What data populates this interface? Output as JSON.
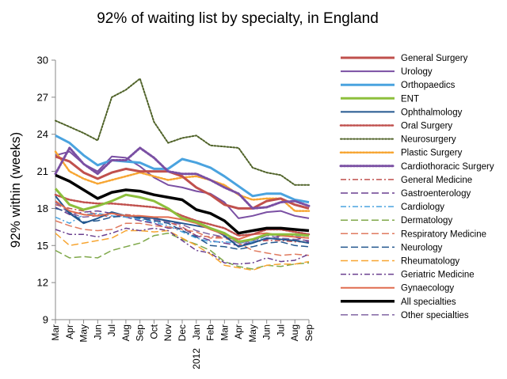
{
  "chart_data": {
    "type": "line",
    "title": "92% of waiting list by specialty, in England",
    "xlabel": "",
    "ylabel": "92% within (weeks)",
    "ylim": [
      9,
      30
    ],
    "yticks": [
      9,
      12,
      15,
      18,
      21,
      24,
      27,
      30
    ],
    "grid": false,
    "legend_position": "right",
    "x": [
      "Mar",
      "Apr",
      "May",
      "Jun",
      "Jul",
      "Aug",
      "Sep",
      "Oct",
      "Nov",
      "Dec",
      "Jan",
      "Feb",
      "Mar",
      "Apr",
      "May",
      "Jun",
      "Jul",
      "Aug",
      "Sep"
    ],
    "year_label": {
      "text": "2012",
      "index": 10
    },
    "series": [
      {
        "name": "General Surgery",
        "color": "#c0504d",
        "dash": "solid",
        "width": 3,
        "values": [
          22.2,
          21.8,
          20.9,
          20.4,
          20.9,
          21.2,
          21.0,
          21.0,
          21.0,
          20.6,
          19.7,
          19.1,
          18.3,
          18.0,
          18.0,
          18.6,
          18.8,
          18.3,
          18.0
        ]
      },
      {
        "name": "Urology",
        "color": "#7a4fa3",
        "dash": "solid",
        "width": 2,
        "values": [
          22.3,
          22.6,
          21.6,
          21.0,
          22.2,
          22.1,
          21.4,
          20.5,
          19.9,
          19.7,
          19.4,
          19.2,
          18.5,
          17.2,
          17.4,
          17.7,
          17.8,
          17.4,
          17.2
        ]
      },
      {
        "name": "Orthopaedics",
        "color": "#4aa3df",
        "dash": "solid",
        "width": 3,
        "values": [
          23.9,
          23.3,
          22.3,
          21.5,
          21.9,
          21.8,
          21.7,
          21.2,
          21.2,
          22.0,
          21.7,
          21.3,
          20.6,
          19.8,
          19.0,
          19.2,
          19.2,
          18.7,
          18.5
        ]
      },
      {
        "name": "ENT",
        "color": "#8dbf3c",
        "dash": "solid",
        "width": 3,
        "values": [
          19.6,
          18.3,
          17.9,
          18.2,
          18.6,
          19.1,
          18.9,
          18.6,
          18.0,
          17.2,
          16.9,
          16.4,
          16.0,
          15.3,
          15.5,
          15.9,
          15.9,
          15.9,
          15.8
        ]
      },
      {
        "name": "Ophthalmology",
        "color": "#23578f",
        "dash": "solid",
        "width": 2,
        "values": [
          19.0,
          17.6,
          16.8,
          17.2,
          17.7,
          17.4,
          17.3,
          17.2,
          17.0,
          16.8,
          16.6,
          16.4,
          15.8,
          14.9,
          15.2,
          15.6,
          15.5,
          15.4,
          15.2
        ]
      },
      {
        "name": "Oral Surgery",
        "color": "#c0504d",
        "dash": "dot",
        "width": 2.5,
        "values": [
          19.1,
          18.7,
          18.5,
          18.4,
          18.4,
          18.3,
          18.2,
          18.1,
          17.9,
          17.4,
          17.0,
          16.7,
          16.4,
          15.8,
          15.9,
          16.3,
          16.3,
          16.1,
          15.9
        ]
      },
      {
        "name": "Neurosurgery",
        "color": "#4f6228",
        "dash": "dot",
        "width": 2,
        "values": [
          25.1,
          24.6,
          24.1,
          23.5,
          27.0,
          27.6,
          28.5,
          25.0,
          23.3,
          23.7,
          23.9,
          23.1,
          23.0,
          22.9,
          21.3,
          20.9,
          20.7,
          19.9,
          19.9
        ]
      },
      {
        "name": "Plastic Surgery",
        "color": "#f7a531",
        "dash": "dot",
        "width": 2.5,
        "values": [
          22.6,
          21.0,
          20.4,
          20.0,
          20.3,
          20.6,
          20.9,
          20.6,
          20.3,
          20.5,
          20.6,
          20.3,
          19.9,
          19.1,
          18.7,
          18.8,
          18.8,
          17.8,
          17.8
        ]
      },
      {
        "name": "Cardiothoracic Surgery",
        "color": "#7a4fa3",
        "dash": "dot",
        "width": 3,
        "values": [
          20.8,
          22.9,
          21.6,
          20.8,
          21.9,
          21.9,
          22.9,
          22.1,
          21.0,
          20.8,
          20.8,
          20.3,
          19.7,
          19.2,
          18.0,
          18.1,
          18.5,
          18.6,
          18.2
        ]
      },
      {
        "name": "General Medicine",
        "color": "#c0504d",
        "dash": "dashdot",
        "width": 1.5,
        "values": [
          18.3,
          18.0,
          17.8,
          17.5,
          17.3,
          17.5,
          17.4,
          17.3,
          16.9,
          16.5,
          15.8,
          15.7,
          15.7,
          15.4,
          15.3,
          15.4,
          15.4,
          15.3,
          15.3
        ]
      },
      {
        "name": "Gastroenterology",
        "color": "#6a3f8f",
        "dash": "longdash",
        "width": 1.5,
        "values": [
          18.1,
          17.5,
          17.7,
          17.8,
          17.6,
          17.3,
          17.0,
          16.8,
          16.4,
          16.4,
          15.8,
          15.4,
          15.2,
          15.0,
          15.3,
          15.5,
          15.8,
          15.7,
          15.3
        ]
      },
      {
        "name": "Cardiology",
        "color": "#4aa3df",
        "dash": "dashdot",
        "width": 1.5,
        "values": [
          17.3,
          16.8,
          17.5,
          17.6,
          17.4,
          17.3,
          17.1,
          16.9,
          16.6,
          16.1,
          15.6,
          15.3,
          15.3,
          15.2,
          15.3,
          15.8,
          15.9,
          15.8,
          15.6
        ]
      },
      {
        "name": "Dermatology",
        "color": "#7fa84a",
        "dash": "longdash",
        "width": 1.5,
        "values": [
          14.6,
          14.0,
          14.1,
          14.0,
          14.6,
          14.9,
          15.2,
          15.8,
          16.0,
          15.5,
          15.1,
          14.6,
          13.7,
          13.3,
          13.1,
          13.4,
          13.3,
          13.5,
          13.6
        ]
      },
      {
        "name": "Respiratory Medicine",
        "color": "#e07a5f",
        "dash": "longdash",
        "width": 1.5,
        "values": [
          17.0,
          16.6,
          16.3,
          16.2,
          16.3,
          16.8,
          16.8,
          16.6,
          16.5,
          16.3,
          16.1,
          15.6,
          15.6,
          15.2,
          14.6,
          14.4,
          14.2,
          14.3,
          14.2
        ]
      },
      {
        "name": "Neurology",
        "color": "#23578f",
        "dash": "longdash",
        "width": 1.5,
        "values": [
          18.0,
          17.7,
          16.9,
          17.0,
          17.3,
          17.4,
          17.2,
          17.0,
          16.8,
          16.2,
          15.7,
          15.0,
          14.9,
          14.7,
          14.9,
          15.2,
          15.3,
          15.0,
          14.9
        ]
      },
      {
        "name": "Rheumatology",
        "color": "#f7a531",
        "dash": "longdash",
        "width": 1.5,
        "values": [
          16.0,
          15.0,
          15.2,
          15.4,
          15.6,
          16.2,
          16.2,
          16.1,
          16.2,
          15.6,
          15.0,
          14.3,
          13.4,
          13.2,
          13.0,
          13.4,
          13.5,
          13.5,
          13.7
        ]
      },
      {
        "name": "Geriatric Medicine",
        "color": "#6a3f8f",
        "dash": "dashdot",
        "width": 1.5,
        "values": [
          16.3,
          15.9,
          15.9,
          15.7,
          16.0,
          16.4,
          16.2,
          16.4,
          16.2,
          15.4,
          14.6,
          14.4,
          13.6,
          13.5,
          13.6,
          14.0,
          13.7,
          13.8,
          14.3
        ]
      },
      {
        "name": "Gynaecology",
        "color": "#e06c4f",
        "dash": "solid",
        "width": 2,
        "values": [
          18.6,
          17.8,
          17.5,
          17.4,
          17.6,
          17.4,
          17.4,
          17.3,
          17.3,
          17.1,
          16.8,
          16.3,
          15.9,
          15.5,
          15.9,
          16.0,
          15.8,
          15.7,
          15.6
        ]
      },
      {
        "name": "All specialties",
        "color": "#000000",
        "dash": "solid",
        "width": 3.5,
        "values": [
          20.7,
          20.2,
          19.5,
          18.8,
          19.3,
          19.5,
          19.4,
          19.1,
          18.9,
          18.7,
          17.9,
          17.6,
          17.0,
          16.0,
          16.2,
          16.4,
          16.4,
          16.3,
          16.2
        ]
      },
      {
        "name": "Other specialties",
        "color": "#8064a2",
        "dash": "longdash",
        "width": 1.5,
        "values": [
          18.5,
          17.6,
          17.3,
          17.4,
          17.6,
          17.4,
          17.3,
          17.1,
          16.9,
          16.7,
          16.2,
          15.9,
          15.7,
          15.2,
          15.4,
          15.8,
          15.6,
          15.5,
          15.4
        ]
      }
    ]
  }
}
